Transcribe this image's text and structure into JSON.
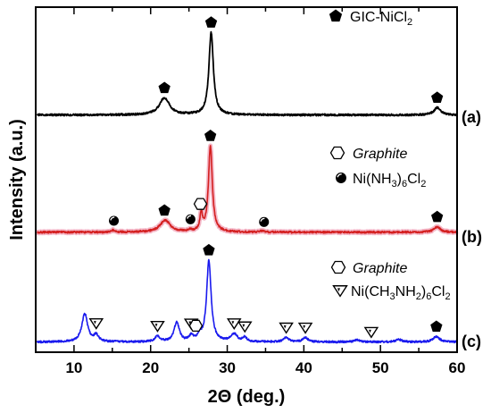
{
  "chart_data": {
    "type": "line",
    "xlabel": "2Θ (deg.)",
    "ylabel": "Intensity (a.u.)",
    "xlim": [
      5,
      60
    ],
    "x_ticks": [
      10,
      20,
      30,
      40,
      50,
      60
    ],
    "x_tick_labels": [
      "10",
      "20",
      "30",
      "40",
      "50",
      "60"
    ],
    "y_ticks_shown": false,
    "series": [
      {
        "name": "(a)",
        "color": "#000000",
        "baseline": 0.02,
        "peaks": [
          {
            "x": 21.8,
            "height": 0.16,
            "width": 0.8
          },
          {
            "x": 27.9,
            "height": 0.78,
            "width": 0.35
          },
          {
            "x": 57.4,
            "height": 0.07,
            "width": 0.5
          }
        ],
        "markers": [
          {
            "x": 21.8,
            "symbol": "pentagon"
          },
          {
            "x": 27.9,
            "symbol": "pentagon"
          },
          {
            "x": 57.4,
            "symbol": "pentagon"
          }
        ]
      },
      {
        "name": "(b)",
        "color": "#d42020",
        "baseline": 0.01,
        "peaks": [
          {
            "x": 15.1,
            "height": 0.02,
            "width": 0.25
          },
          {
            "x": 21.9,
            "height": 0.11,
            "width": 0.8
          },
          {
            "x": 25.1,
            "height": 0.015,
            "width": 0.3
          },
          {
            "x": 26.6,
            "height": 0.16,
            "width": 0.2
          },
          {
            "x": 27.8,
            "height": 0.8,
            "width": 0.3
          },
          {
            "x": 34.5,
            "height": 0.012,
            "width": 0.3
          },
          {
            "x": 57.4,
            "height": 0.05,
            "width": 0.5
          }
        ],
        "markers": [
          {
            "x": 15.2,
            "symbol": "ball"
          },
          {
            "x": 21.8,
            "symbol": "pentagon"
          },
          {
            "x": 25.2,
            "symbol": "ball"
          },
          {
            "x": 26.5,
            "symbol": "hexagon"
          },
          {
            "x": 27.8,
            "symbol": "pentagon"
          },
          {
            "x": 34.8,
            "symbol": "ball"
          },
          {
            "x": 57.4,
            "symbol": "pentagon"
          }
        ]
      },
      {
        "name": "(c)",
        "color": "#1a1aee",
        "baseline": 0.02,
        "peaks": [
          {
            "x": 11.4,
            "height": 0.26,
            "width": 0.45
          },
          {
            "x": 12.9,
            "height": 0.06,
            "width": 0.35
          },
          {
            "x": 20.9,
            "height": 0.05,
            "width": 0.4
          },
          {
            "x": 23.4,
            "height": 0.18,
            "width": 0.4
          },
          {
            "x": 25.3,
            "height": 0.05,
            "width": 0.3
          },
          {
            "x": 26.4,
            "height": 0.05,
            "width": 0.3
          },
          {
            "x": 27.6,
            "height": 0.75,
            "width": 0.35
          },
          {
            "x": 30.9,
            "height": 0.07,
            "width": 0.5
          },
          {
            "x": 32.3,
            "height": 0.04,
            "width": 0.3
          },
          {
            "x": 37.7,
            "height": 0.04,
            "width": 0.4
          },
          {
            "x": 40.2,
            "height": 0.04,
            "width": 0.4
          },
          {
            "x": 47.0,
            "height": 0.02,
            "width": 0.4
          },
          {
            "x": 52.4,
            "height": 0.025,
            "width": 0.4
          },
          {
            "x": 57.3,
            "height": 0.05,
            "width": 0.5
          }
        ],
        "markers": [
          {
            "x": 12.9,
            "symbol": "triangle-down"
          },
          {
            "x": 20.9,
            "symbol": "triangle-down"
          },
          {
            "x": 25.3,
            "symbol": "triangle-down"
          },
          {
            "x": 25.9,
            "symbol": "hexagon"
          },
          {
            "x": 27.6,
            "symbol": "pentagon"
          },
          {
            "x": 30.9,
            "symbol": "triangle-down"
          },
          {
            "x": 32.3,
            "symbol": "triangle-down"
          },
          {
            "x": 37.7,
            "symbol": "triangle-down"
          },
          {
            "x": 40.2,
            "symbol": "triangle-down"
          },
          {
            "x": 48.8,
            "symbol": "triangle-down"
          },
          {
            "x": 57.3,
            "symbol": "pentagon"
          }
        ]
      }
    ],
    "legends": [
      {
        "symbol": "pentagon",
        "parts": [
          {
            "t": "GIC-NiCl"
          },
          {
            "t": "2",
            "sub": true
          }
        ]
      },
      {
        "symbol": "hexagon",
        "italic": true,
        "parts": [
          {
            "t": "Graphite"
          }
        ]
      },
      {
        "symbol": "ball",
        "parts": [
          {
            "t": "Ni(NH"
          },
          {
            "t": "3",
            "sub": true
          },
          {
            "t": ")"
          },
          {
            "t": "6",
            "sub": true
          },
          {
            "t": "Cl"
          },
          {
            "t": "2",
            "sub": true
          }
        ]
      },
      {
        "symbol": "hexagon",
        "italic": true,
        "parts": [
          {
            "t": "Graphite"
          }
        ]
      },
      {
        "symbol": "triangle-down",
        "parts": [
          {
            "t": "Ni(CH"
          },
          {
            "t": "3",
            "sub": true
          },
          {
            "t": "NH"
          },
          {
            "t": "2",
            "sub": true
          },
          {
            "t": ")"
          },
          {
            "t": "6",
            "sub": true
          },
          {
            "t": "Cl"
          },
          {
            "t": "2",
            "sub": true
          }
        ]
      }
    ],
    "colors": {
      "frame": "#000000",
      "trace_a": "#000000",
      "trace_b": "#d42020",
      "trace_c": "#1a1aee"
    }
  }
}
